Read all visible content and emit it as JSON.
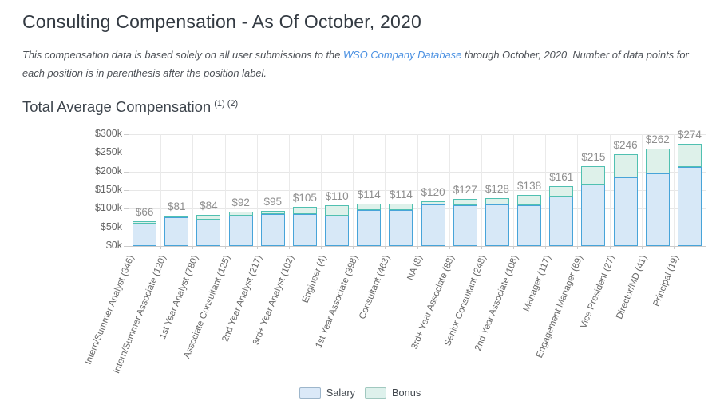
{
  "page": {
    "title": "Consulting Compensation - As Of October, 2020",
    "note": {
      "text_before_link": "This compensation data is based solely on all user submissions to the ",
      "link_text": "WSO Company Database",
      "text_after_link": " through October, 2020. Number of data points for each position is in parenthesis after the position label."
    },
    "section": {
      "title": "Total Average Compensation",
      "superscript": "(1) (2)"
    }
  },
  "colors": {
    "link": "#4a90e2",
    "salary_fill": "#d7e8f7",
    "salary_border": "#47a4d9",
    "bonus_fill": "#def1ea",
    "bonus_border": "#50c0b1",
    "legend_salary_border": "#9db6cb",
    "legend_bonus_border": "#a0c8bf",
    "gridline": "#e7e7e7",
    "axis_line": "#cbcbcb",
    "value_label": "#8e8e8e",
    "axis_label": "#666666"
  },
  "chart_data": {
    "type": "bar",
    "stacked": true,
    "title": "Total Average Compensation (1) (2)",
    "xlabel": "",
    "ylabel": "",
    "ylim": [
      0,
      300
    ],
    "grid": true,
    "legend_position": "bottom",
    "legend": [
      "Salary",
      "Bonus"
    ],
    "yticks": [
      "$300k",
      "$250k",
      "$200k",
      "$150k",
      "$100k",
      "$50k",
      "$0k"
    ],
    "categories": [
      "Intern/Summer Analyst (346)",
      "Intern/Summer Associate (120)",
      "1st Year Analyst (780)",
      "Associate Consultant (125)",
      "2nd Year Analyst (217)",
      "3rd+ Year Analyst (102)",
      "Engineer (4)",
      "1st Year Associate (398)",
      "Consultant (463)",
      "NA (8)",
      "3rd+ Year Associate (88)",
      "Senior Consultant (248)",
      "2nd Year Associate (108)",
      "Manager (117)",
      "Engagement Manager (69)",
      "Vice President (27)",
      "Director/MD (41)",
      "Principal (19)"
    ],
    "series": [
      {
        "name": "Salary",
        "values": [
          61,
          77,
          72,
          82,
          86,
          87,
          82,
          97,
          96,
          111,
          109,
          111,
          110,
          134,
          166,
          185,
          195,
          212
        ]
      },
      {
        "name": "Bonus",
        "values": [
          5,
          4,
          12,
          10,
          9,
          18,
          28,
          17,
          18,
          9,
          18,
          17,
          28,
          27,
          49,
          61,
          67,
          62
        ]
      }
    ],
    "totals": [
      66,
      81,
      84,
      92,
      95,
      105,
      110,
      114,
      114,
      120,
      127,
      128,
      138,
      161,
      215,
      246,
      262,
      274
    ],
    "total_labels": [
      "$66",
      "$81",
      "$84",
      "$92",
      "$95",
      "$105",
      "$110",
      "$114",
      "$114",
      "$120",
      "$127",
      "$128",
      "$138",
      "$161",
      "$215",
      "$246",
      "$262",
      "$274"
    ]
  }
}
